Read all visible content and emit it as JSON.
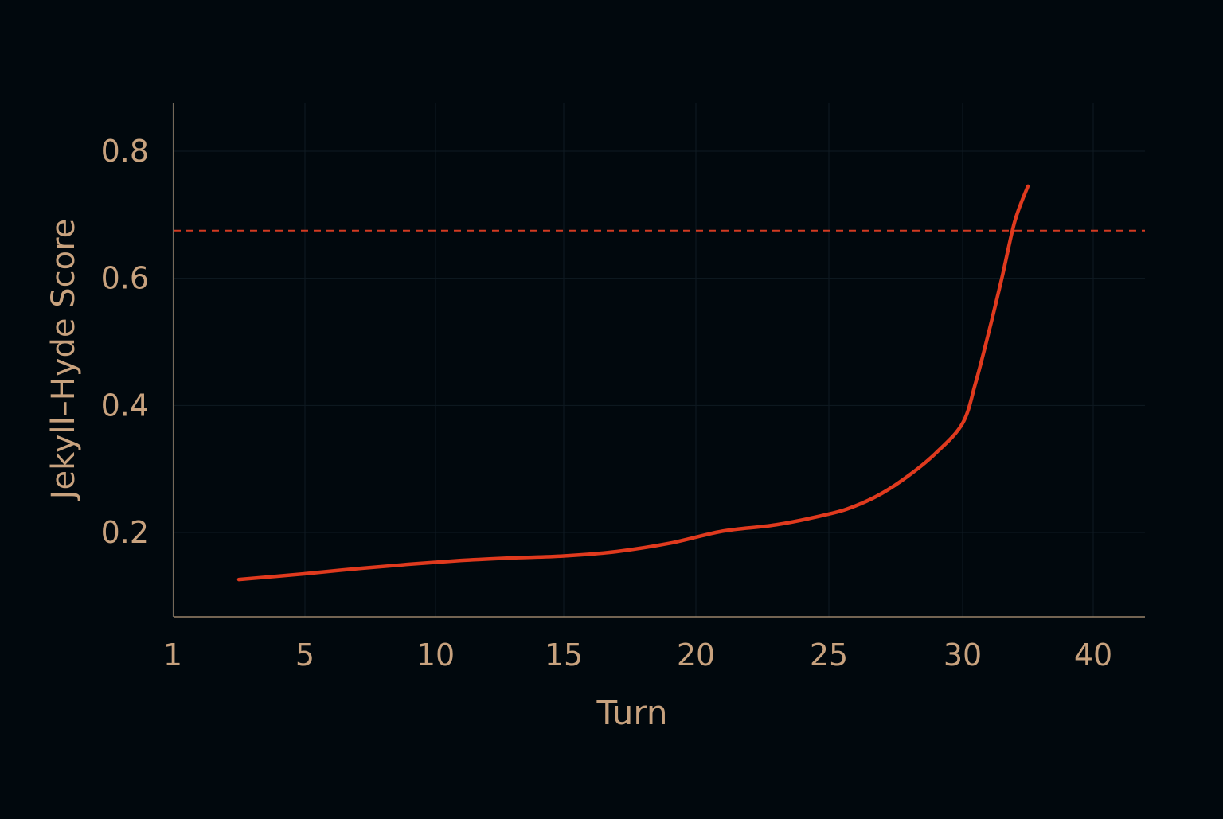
{
  "chart_data": {
    "type": "line",
    "title": "",
    "xlabel": "Turn",
    "ylabel": "Jekyll–Hyde Score",
    "x_ticks": [
      1,
      5,
      10,
      15,
      20,
      25,
      30,
      40
    ],
    "y_ticks": [
      0.2,
      0.4,
      0.6,
      0.8
    ],
    "y_tick_labels": [
      "0.2",
      "0.4",
      "0.6",
      "0.8"
    ],
    "ylim": [
      0.07,
      0.87
    ],
    "grid": true,
    "threshold": 0.675,
    "series": [
      {
        "name": "",
        "points": [
          [
            3,
            0.126
          ],
          [
            5,
            0.135
          ],
          [
            7,
            0.143
          ],
          [
            9,
            0.15
          ],
          [
            11,
            0.156
          ],
          [
            13,
            0.16
          ],
          [
            15,
            0.163
          ],
          [
            17,
            0.17
          ],
          [
            19,
            0.183
          ],
          [
            21,
            0.202
          ],
          [
            23,
            0.212
          ],
          [
            25,
            0.229
          ],
          [
            26,
            0.242
          ],
          [
            27,
            0.262
          ],
          [
            28,
            0.29
          ],
          [
            29,
            0.325
          ],
          [
            30,
            0.372
          ],
          [
            31,
            0.436
          ],
          [
            32,
            0.515
          ],
          [
            33,
            0.6
          ],
          [
            34,
            0.69
          ],
          [
            35,
            0.745
          ]
        ]
      }
    ],
    "colors": {
      "background": "#01080d",
      "line": "#e03a1e",
      "threshold": "#d23a22",
      "axis": "#b89c7c",
      "text": "#c8a27e",
      "grid": "#0f1a22"
    }
  }
}
